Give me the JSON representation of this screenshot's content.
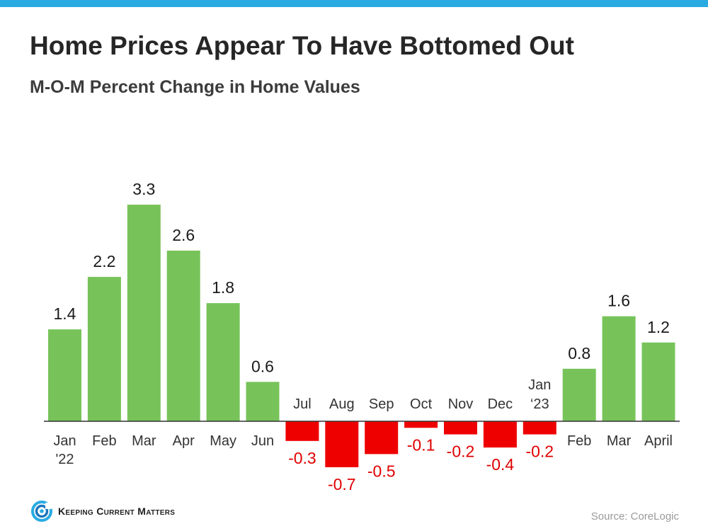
{
  "header": {
    "title": "Home Prices Appear To Have Bottomed Out",
    "subtitle": "M-O-M Percent Change in Home Values"
  },
  "colors": {
    "top_bar": "#29abe2",
    "positive": "#77c35a",
    "negative": "#ee0000",
    "negative_label": "#e00000",
    "axis": "#333333"
  },
  "chart_data": {
    "type": "bar",
    "title": "Home Prices Appear To Have Bottomed Out",
    "subtitle": "M-O-M Percent Change in Home Values",
    "categories": [
      [
        "Jan",
        "'22"
      ],
      [
        "Feb"
      ],
      [
        "Mar"
      ],
      [
        "Apr"
      ],
      [
        "May"
      ],
      [
        "Jun"
      ],
      [
        "Jul"
      ],
      [
        "Aug"
      ],
      [
        "Sep"
      ],
      [
        "Oct"
      ],
      [
        "Nov"
      ],
      [
        "Dec"
      ],
      [
        "Jan",
        "‘23"
      ],
      [
        "Feb"
      ],
      [
        "Mar"
      ],
      [
        "April"
      ]
    ],
    "values": [
      1.4,
      2.2,
      3.3,
      2.6,
      1.8,
      0.6,
      -0.3,
      -0.7,
      -0.5,
      -0.1,
      -0.2,
      -0.4,
      -0.2,
      0.8,
      1.6,
      1.2
    ],
    "value_labels": [
      "1.4",
      "2.2",
      "3.3",
      "2.6",
      "1.8",
      "0.6",
      "-0.3",
      "-0.7",
      "-0.5",
      "-0.1",
      "-0.2",
      "-0.4",
      "-0.2",
      "0.8",
      "1.6",
      "1.2"
    ],
    "xlabel": "",
    "ylabel": "",
    "grid": false,
    "legend": "none"
  },
  "footer": {
    "logo_text": "Keeping Current Matters",
    "logo_icon": "kcm-swirl-icon",
    "source": "Source: CoreLogic"
  }
}
